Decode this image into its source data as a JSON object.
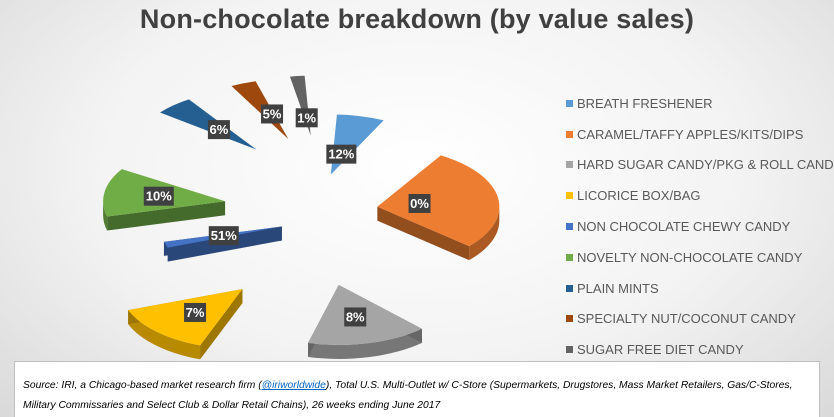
{
  "chart_data": {
    "type": "pie",
    "title": "Non-chocolate breakdown (by value sales)",
    "categories": [
      "BREATH FRESHENER",
      "CARAMEL/TAFFY APPLES/KITS/DIPS",
      "HARD SUGAR CANDY/PKG & ROLL CANDY",
      "LICORICE BOX/BAG",
      "NON CHOCOLATE CHEWY CANDY",
      "NOVELTY NON-CHOCOLATE CANDY",
      "PLAIN MINTS",
      "SPECIALTY NUT/COCONUT CANDY",
      "SUGAR FREE DIET CANDY"
    ],
    "values": [
      12,
      0,
      8,
      7,
      51,
      10,
      6,
      5,
      1
    ],
    "data_labels": [
      "12%",
      "0%",
      "8%",
      "7%",
      "51%",
      "10%",
      "6%",
      "5%",
      "1%"
    ],
    "colors": [
      "#5b9bd5",
      "#ed7d31",
      "#a5a5a5",
      "#ffc000",
      "#4472c4",
      "#70ad47",
      "#255e91",
      "#9e480e",
      "#636363"
    ],
    "legend_position": "right",
    "style": "exploded 3D pie"
  },
  "source": {
    "before_link": "Source: IRI, a Chicago-based market research firm (",
    "link_text": "@iriworldwide",
    "after_link": "), Total U.S. Multi-Outlet w/ C-Store (Supermarkets, Drugstores, Mass Market Retailers, Gas/C-Stores, Military Commissaries and Select Club & Dollar Retail Chains), 26 weeks ending June 2017"
  }
}
